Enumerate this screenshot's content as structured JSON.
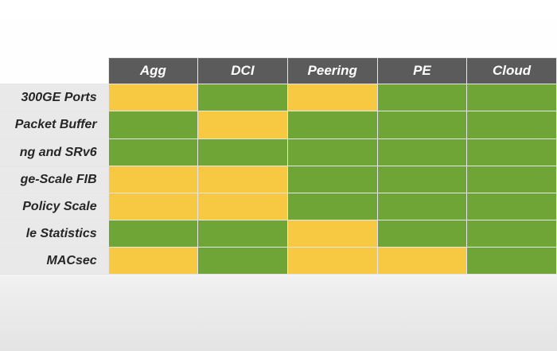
{
  "colors": {
    "green": "#6fa437",
    "yellow": "#f7c842",
    "header": "#5b5b5b"
  },
  "columns": [
    "Agg",
    "DCI",
    "Peering",
    "PE",
    "Cloud"
  ],
  "rows": [
    {
      "label": "300GE Ports",
      "cells": [
        "yellow",
        "green",
        "yellow",
        "green",
        "green"
      ]
    },
    {
      "label": "Packet Buffer",
      "cells": [
        "green",
        "yellow",
        "green",
        "green",
        "green"
      ]
    },
    {
      "label": "ng and SRv6",
      "cells": [
        "green",
        "green",
        "green",
        "green",
        "green"
      ]
    },
    {
      "label": "ge-Scale FIB",
      "cells": [
        "yellow",
        "yellow",
        "green",
        "green",
        "green"
      ]
    },
    {
      "label": "Policy Scale",
      "cells": [
        "yellow",
        "yellow",
        "green",
        "green",
        "green"
      ]
    },
    {
      "label": "le Statistics",
      "cells": [
        "green",
        "green",
        "yellow",
        "green",
        "green"
      ]
    },
    {
      "label": "MACsec",
      "cells": [
        "yellow",
        "green",
        "yellow",
        "yellow",
        "green"
      ]
    }
  ]
}
